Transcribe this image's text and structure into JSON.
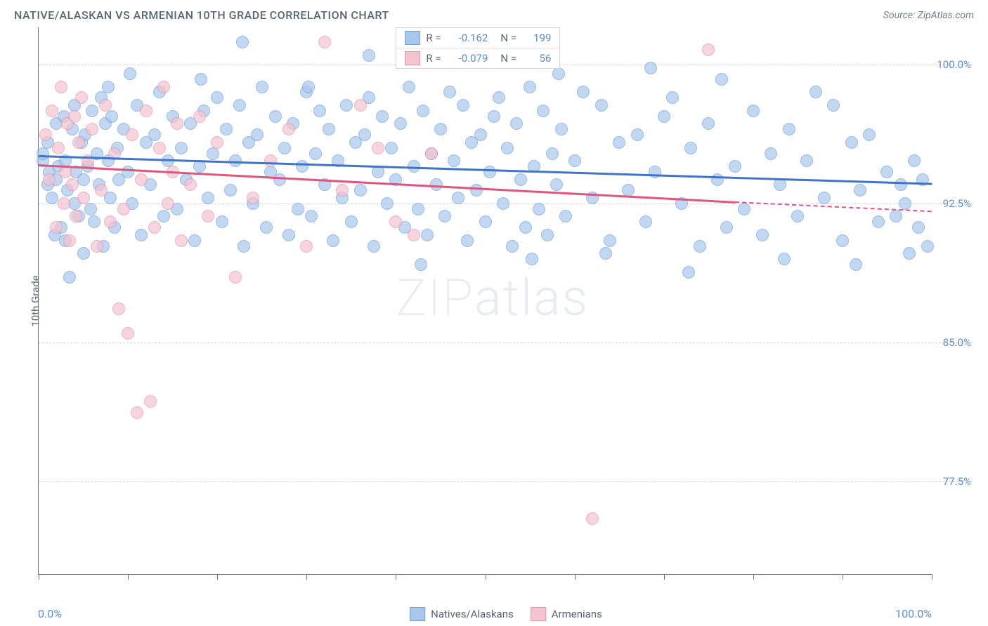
{
  "title": "NATIVE/ALASKAN VS ARMENIAN 10TH GRADE CORRELATION CHART",
  "source": "Source: ZipAtlas.com",
  "y_label": "10th Grade",
  "watermark": {
    "a": "ZIP",
    "b": "atlas"
  },
  "chart": {
    "type": "scatter",
    "xlim": [
      0,
      100
    ],
    "ylim": [
      72.5,
      102
    ],
    "y_ticks": [
      77.5,
      85.0,
      92.5,
      100.0
    ],
    "y_tick_labels": [
      "77.5%",
      "85.0%",
      "92.5%",
      "100.0%"
    ],
    "x_ticks": [
      0,
      10,
      20,
      30,
      40,
      50,
      60,
      70,
      80,
      90,
      100
    ],
    "x_min_label": "0.0%",
    "x_max_label": "100.0%",
    "grid_color": "#d0d5da",
    "axis_color": "#6b7680",
    "background": "#ffffff",
    "point_radius": 9,
    "point_fill_opacity": 0.35,
    "point_stroke_opacity": 0.9,
    "title_color": "#5a6570",
    "tick_label_color": "#5b8dd6",
    "series": [
      {
        "key": "natives",
        "label": "Natives/Alaskans",
        "color_fill": "#a9c7ec",
        "color_stroke": "#6fa0db",
        "trend_color": "#3f74c9",
        "R": "-0.162",
        "N": "199",
        "trend": {
          "x1": 0,
          "y1": 95.1,
          "x2": 100,
          "y2": 93.6
        },
        "points": [
          [
            0.5,
            94.8
          ],
          [
            0.5,
            95.2
          ],
          [
            1,
            93.5
          ],
          [
            1,
            95.8
          ],
          [
            1.2,
            94.2
          ],
          [
            1.5,
            92.8
          ],
          [
            1.8,
            90.8
          ],
          [
            2,
            96.8
          ],
          [
            2,
            93.8
          ],
          [
            2.2,
            94.5
          ],
          [
            2.5,
            91.2
          ],
          [
            2.8,
            97.2
          ],
          [
            3,
            90.5
          ],
          [
            3,
            94.8
          ],
          [
            3.2,
            93.2
          ],
          [
            3.5,
            88.5
          ],
          [
            3.8,
            96.5
          ],
          [
            4,
            97.8
          ],
          [
            4,
            92.5
          ],
          [
            4.2,
            94.2
          ],
          [
            4.5,
            91.8
          ],
          [
            4.8,
            95.8
          ],
          [
            5,
            93.8
          ],
          [
            5,
            89.8
          ],
          [
            5.2,
            96.2
          ],
          [
            5.5,
            94.5
          ],
          [
            5.8,
            92.2
          ],
          [
            6,
            97.5
          ],
          [
            6.2,
            91.5
          ],
          [
            6.5,
            95.2
          ],
          [
            6.8,
            93.5
          ],
          [
            7,
            98.2
          ],
          [
            7.2,
            90.2
          ],
          [
            7.5,
            96.8
          ],
          [
            7.8,
            94.8
          ],
          [
            8,
            92.8
          ],
          [
            8.2,
            97.2
          ],
          [
            8.5,
            91.2
          ],
          [
            8.8,
            95.5
          ],
          [
            9,
            93.8
          ],
          [
            9.5,
            96.5
          ],
          [
            10,
            94.2
          ],
          [
            10.5,
            92.5
          ],
          [
            11,
            97.8
          ],
          [
            11.5,
            90.8
          ],
          [
            12,
            95.8
          ],
          [
            12.5,
            93.5
          ],
          [
            13,
            96.2
          ],
          [
            13.5,
            98.5
          ],
          [
            14,
            91.8
          ],
          [
            14.5,
            94.8
          ],
          [
            15,
            97.2
          ],
          [
            15.5,
            92.2
          ],
          [
            16,
            95.5
          ],
          [
            16.5,
            93.8
          ],
          [
            17,
            96.8
          ],
          [
            17.5,
            90.5
          ],
          [
            18,
            94.5
          ],
          [
            18.5,
            97.5
          ],
          [
            19,
            92.8
          ],
          [
            19.5,
            95.2
          ],
          [
            20,
            98.2
          ],
          [
            20.5,
            91.5
          ],
          [
            21,
            96.5
          ],
          [
            21.5,
            93.2
          ],
          [
            22,
            94.8
          ],
          [
            22.5,
            97.8
          ],
          [
            23,
            90.2
          ],
          [
            23.5,
            95.8
          ],
          [
            24,
            92.5
          ],
          [
            24.5,
            96.2
          ],
          [
            25,
            98.8
          ],
          [
            25.5,
            91.2
          ],
          [
            26,
            94.2
          ],
          [
            26.5,
            97.2
          ],
          [
            27,
            93.8
          ],
          [
            27.5,
            95.5
          ],
          [
            28,
            90.8
          ],
          [
            28.5,
            96.8
          ],
          [
            29,
            92.2
          ],
          [
            29.5,
            94.5
          ],
          [
            30,
            98.5
          ],
          [
            30.5,
            91.8
          ],
          [
            31,
            95.2
          ],
          [
            31.5,
            97.5
          ],
          [
            32,
            93.5
          ],
          [
            32.5,
            96.5
          ],
          [
            33,
            90.5
          ],
          [
            33.5,
            94.8
          ],
          [
            34,
            92.8
          ],
          [
            34.5,
            97.8
          ],
          [
            35,
            91.5
          ],
          [
            35.5,
            95.8
          ],
          [
            36,
            93.2
          ],
          [
            36.5,
            96.2
          ],
          [
            37,
            98.2
          ],
          [
            37.5,
            90.2
          ],
          [
            38,
            94.2
          ],
          [
            38.5,
            97.2
          ],
          [
            39,
            92.5
          ],
          [
            39.5,
            95.5
          ],
          [
            40,
            93.8
          ],
          [
            40.5,
            96.8
          ],
          [
            41,
            91.2
          ],
          [
            41.5,
            98.8
          ],
          [
            42,
            94.5
          ],
          [
            42.5,
            92.2
          ],
          [
            43,
            97.5
          ],
          [
            43.5,
            90.8
          ],
          [
            44,
            95.2
          ],
          [
            44.5,
            93.5
          ],
          [
            45,
            96.5
          ],
          [
            45.5,
            91.8
          ],
          [
            46,
            98.5
          ],
          [
            46.5,
            94.8
          ],
          [
            47,
            92.8
          ],
          [
            47.5,
            97.8
          ],
          [
            48,
            90.5
          ],
          [
            48.5,
            95.8
          ],
          [
            49,
            93.2
          ],
          [
            49.5,
            96.2
          ],
          [
            50,
            91.5
          ],
          [
            50.5,
            94.2
          ],
          [
            51,
            97.2
          ],
          [
            51.5,
            98.2
          ],
          [
            52,
            92.5
          ],
          [
            52.5,
            95.5
          ],
          [
            53,
            90.2
          ],
          [
            53.5,
            96.8
          ],
          [
            54,
            93.8
          ],
          [
            54.5,
            91.2
          ],
          [
            55,
            98.8
          ],
          [
            55.5,
            94.5
          ],
          [
            56,
            92.2
          ],
          [
            56.5,
            97.5
          ],
          [
            57,
            90.8
          ],
          [
            57.5,
            95.2
          ],
          [
            58,
            93.5
          ],
          [
            58.5,
            96.5
          ],
          [
            59,
            91.8
          ],
          [
            60,
            94.8
          ],
          [
            61,
            98.5
          ],
          [
            62,
            92.8
          ],
          [
            63,
            97.8
          ],
          [
            64,
            90.5
          ],
          [
            65,
            95.8
          ],
          [
            66,
            93.2
          ],
          [
            67,
            96.2
          ],
          [
            68,
            91.5
          ],
          [
            69,
            94.2
          ],
          [
            70,
            97.2
          ],
          [
            71,
            98.2
          ],
          [
            72,
            92.5
          ],
          [
            73,
            95.5
          ],
          [
            74,
            90.2
          ],
          [
            75,
            96.8
          ],
          [
            76,
            93.8
          ],
          [
            77,
            91.2
          ],
          [
            78,
            94.5
          ],
          [
            79,
            92.2
          ],
          [
            80,
            97.5
          ],
          [
            81,
            90.8
          ],
          [
            82,
            95.2
          ],
          [
            83,
            93.5
          ],
          [
            84,
            96.5
          ],
          [
            85,
            91.8
          ],
          [
            86,
            94.8
          ],
          [
            87,
            98.5
          ],
          [
            88,
            92.8
          ],
          [
            89,
            97.8
          ],
          [
            90,
            90.5
          ],
          [
            91,
            95.8
          ],
          [
            92,
            93.2
          ],
          [
            93,
            96.2
          ],
          [
            94,
            91.5
          ],
          [
            95,
            94.2
          ],
          [
            96,
            91.8
          ],
          [
            96.5,
            93.5
          ],
          [
            97,
            92.5
          ],
          [
            97.5,
            89.8
          ],
          [
            98,
            94.8
          ],
          [
            98.5,
            91.2
          ],
          [
            99,
            93.8
          ],
          [
            99.5,
            90.2
          ],
          [
            76.5,
            99.2
          ],
          [
            68.5,
            99.8
          ],
          [
            55.2,
            89.5
          ],
          [
            42.8,
            89.2
          ],
          [
            30.2,
            98.8
          ],
          [
            18.2,
            99.2
          ],
          [
            63.5,
            89.8
          ],
          [
            83.5,
            89.5
          ],
          [
            10.2,
            99.5
          ],
          [
            7.8,
            98.8
          ],
          [
            37,
            100.5
          ],
          [
            91.5,
            89.2
          ],
          [
            22.8,
            101.2
          ],
          [
            58.2,
            99.5
          ],
          [
            72.8,
            88.8
          ]
        ]
      },
      {
        "key": "armenians",
        "label": "Armenians",
        "color_fill": "#f4c4d1",
        "color_stroke": "#e891ab",
        "trend_color": "#e0557e",
        "R": "-0.079",
        "N": "56",
        "trend": {
          "x1": 0,
          "y1": 94.6,
          "x2": 78,
          "y2": 92.6
        },
        "trend_dash": {
          "x1": 78,
          "y1": 92.6,
          "x2": 100,
          "y2": 92.1
        },
        "points": [
          [
            0.8,
            96.2
          ],
          [
            1.2,
            93.8
          ],
          [
            1.5,
            97.5
          ],
          [
            2,
            91.2
          ],
          [
            2.2,
            95.5
          ],
          [
            2.5,
            98.8
          ],
          [
            2.8,
            92.5
          ],
          [
            3,
            94.2
          ],
          [
            3.2,
            96.8
          ],
          [
            3.5,
            90.5
          ],
          [
            3.8,
            93.5
          ],
          [
            4,
            97.2
          ],
          [
            4.2,
            91.8
          ],
          [
            4.5,
            95.8
          ],
          [
            4.8,
            98.2
          ],
          [
            5,
            92.8
          ],
          [
            5.5,
            94.8
          ],
          [
            6,
            96.5
          ],
          [
            6.5,
            90.2
          ],
          [
            7,
            93.2
          ],
          [
            7.5,
            97.8
          ],
          [
            8,
            91.5
          ],
          [
            8.5,
            95.2
          ],
          [
            9,
            86.8
          ],
          [
            9.5,
            92.2
          ],
          [
            10,
            85.5
          ],
          [
            10.5,
            96.2
          ],
          [
            11,
            81.2
          ],
          [
            11.5,
            93.8
          ],
          [
            12,
            97.5
          ],
          [
            12.5,
            81.8
          ],
          [
            13,
            91.2
          ],
          [
            13.5,
            95.5
          ],
          [
            14,
            98.8
          ],
          [
            14.5,
            92.5
          ],
          [
            15,
            94.2
          ],
          [
            15.5,
            96.8
          ],
          [
            16,
            90.5
          ],
          [
            17,
            93.5
          ],
          [
            18,
            97.2
          ],
          [
            19,
            91.8
          ],
          [
            20,
            95.8
          ],
          [
            22,
            88.5
          ],
          [
            24,
            92.8
          ],
          [
            26,
            94.8
          ],
          [
            28,
            96.5
          ],
          [
            30,
            90.2
          ],
          [
            32,
            101.2
          ],
          [
            34,
            93.2
          ],
          [
            36,
            97.8
          ],
          [
            38,
            95.5
          ],
          [
            40,
            91.5
          ],
          [
            42,
            90.8
          ],
          [
            44,
            95.2
          ],
          [
            62,
            75.5
          ],
          [
            75,
            100.8
          ]
        ]
      }
    ]
  },
  "stats_legend": {
    "r_label": "R =",
    "n_label": "N ="
  },
  "bottom_legend": {
    "items": [
      {
        "label": "Natives/Alaskans",
        "fill": "#a9c7ec",
        "stroke": "#6fa0db"
      },
      {
        "label": "Armenians",
        "fill": "#f4c4d1",
        "stroke": "#e891ab"
      }
    ]
  }
}
